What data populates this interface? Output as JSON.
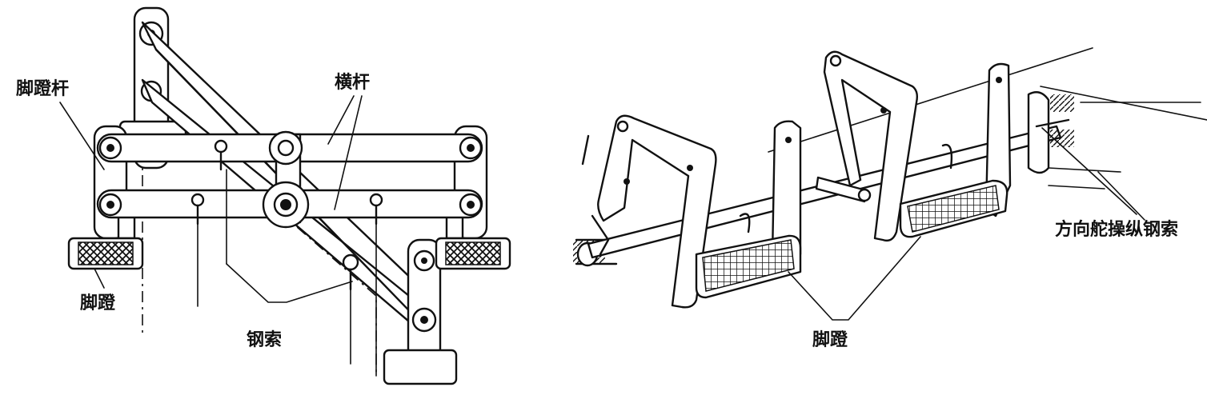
{
  "left_diagram": {
    "label_pedal_bar": "脚蹬杆",
    "label_crossbar": "横杆",
    "label_pedal": "脚蹬",
    "label_cable": "钢索"
  },
  "right_diagram": {
    "label_pedal": "脚蹬",
    "label_rudder_cable": "方向舵操纵钢索"
  }
}
